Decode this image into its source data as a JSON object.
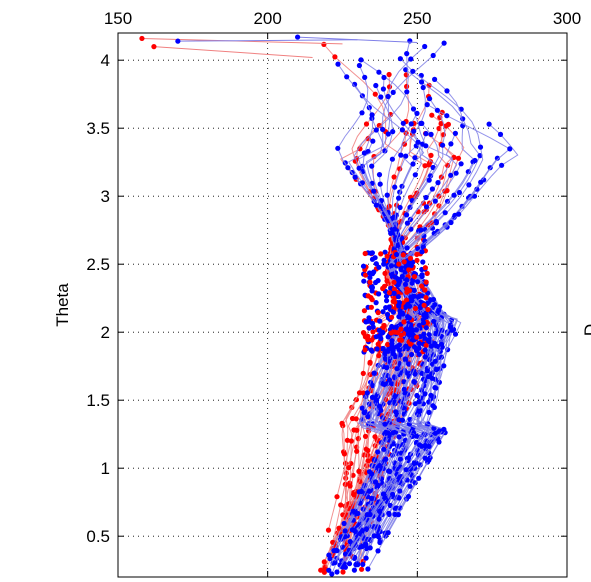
{
  "chart_data": {
    "type": "line",
    "title": "",
    "ylabel": "Theta",
    "xlabel": "",
    "right_ylabel_fragment": "D",
    "xlim": [
      150,
      300
    ],
    "ylim": [
      0.2,
      4.2
    ],
    "x_ticks": [
      150,
      200,
      250,
      300
    ],
    "x_tick_labels": [
      "150",
      "200",
      "250",
      "300"
    ],
    "y_ticks": [
      0.5,
      1,
      1.5,
      2,
      2.5,
      3,
      3.5,
      4
    ],
    "y_tick_labels": [
      "0.5",
      "1",
      "1.5",
      "2",
      "2.5",
      "3",
      "3.5",
      "4"
    ],
    "x_axis_position": "top",
    "grid": true,
    "grid_style": "dotted",
    "series": [
      {
        "color": "#ff0000",
        "line_color": "#f08080",
        "marker": "dot",
        "count": 30
      },
      {
        "color": "#0000ff",
        "line_color": "#8080e8",
        "marker": "dot",
        "count": 60
      }
    ]
  }
}
